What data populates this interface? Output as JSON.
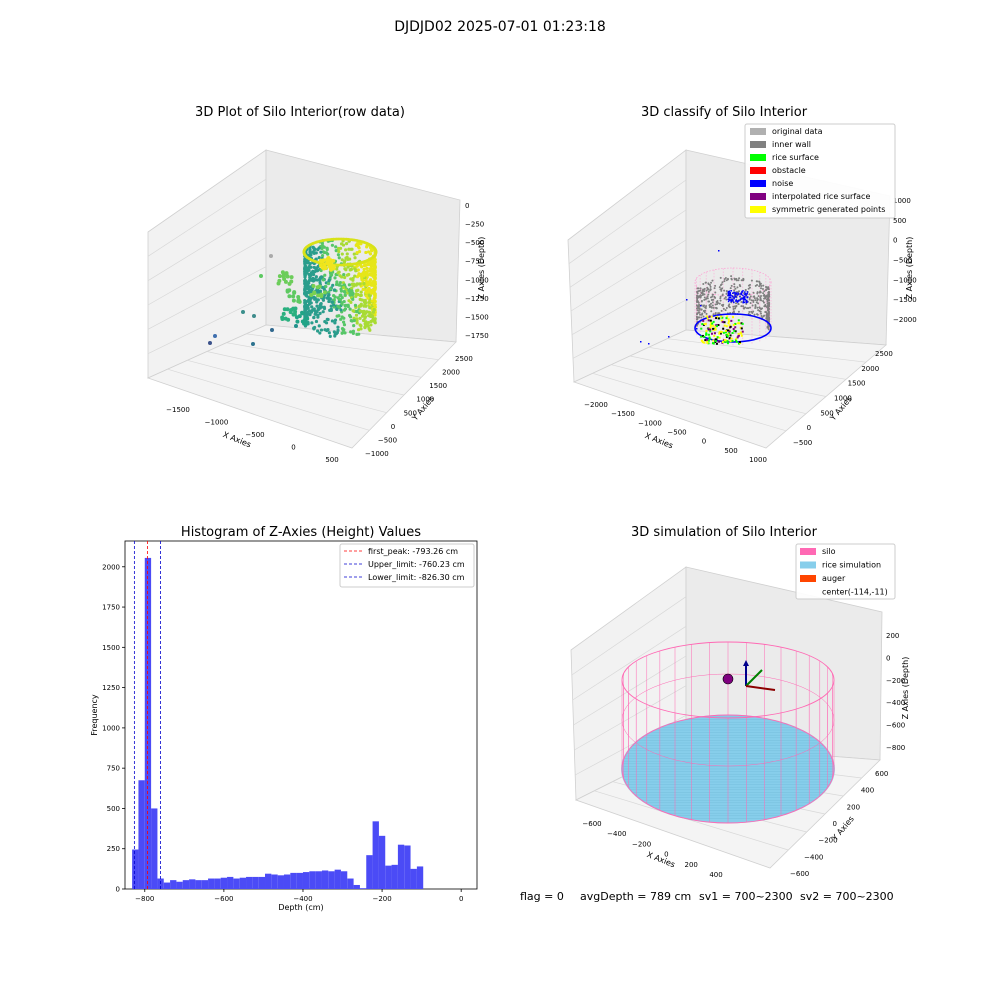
{
  "suptitle": "DJDJD02 2025-07-01 01:23:18",
  "footer": {
    "flag": "flag = 0",
    "avg_depth": "avgDepth = 789 cm",
    "sv1": "sv1 = 700~2300",
    "sv2": "sv2 = 700~2300"
  },
  "colors": {
    "histogram_bar": "#4b4bf6",
    "first_peak_line": "#ff0000",
    "limit_lines": "#0000cc",
    "silo_mesh": "#ff69b4",
    "rice_simulation": "#87ceeb",
    "auger": "#ff4500"
  },
  "chart_data": [
    {
      "type": "scatter3d",
      "title": "3D Plot of Silo Interior(row data)",
      "xlabel": "X Axies",
      "ylabel": "Y Axies",
      "zlabel": "Z Axies (Depth)",
      "x_ticks": [
        "−1500",
        "−1000",
        "−500",
        "0",
        "500"
      ],
      "y_ticks": [
        "−1000",
        "−500",
        "0",
        "500",
        "1000",
        "1500",
        "2000",
        "2500"
      ],
      "z_ticks": [
        "0",
        "−250",
        "−500",
        "−750",
        "−1000",
        "−1250",
        "−1500",
        "−1750"
      ],
      "colormap": "viridis"
    },
    {
      "type": "scatter3d",
      "title": "3D classify of Silo Interior",
      "xlabel": "X Axies",
      "ylabel": "Y Axies",
      "zlabel": "Z Axies (Depth)",
      "x_ticks": [
        "−2000",
        "−1500",
        "−1000",
        "−500",
        "0",
        "500",
        "1000"
      ],
      "y_ticks": [
        "−500",
        "0",
        "500",
        "1000",
        "1500",
        "2000",
        "2500"
      ],
      "z_ticks": [
        "1000",
        "500",
        "0",
        "−500",
        "−1000",
        "−1500",
        "−2000"
      ],
      "legend": [
        {
          "label": "original data",
          "color": "#b0b0b0"
        },
        {
          "label": "inner wall",
          "color": "#808080"
        },
        {
          "label": "rice surface",
          "color": "#00ff00"
        },
        {
          "label": "obstacle",
          "color": "#ff0000"
        },
        {
          "label": "noise",
          "color": "#0000ff"
        },
        {
          "label": "interpolated rice surface",
          "color": "#800080"
        },
        {
          "label": "symmetric generated points",
          "color": "#ffff00"
        }
      ]
    },
    {
      "type": "bar",
      "title": "Histogram of Z-Axies (Height) Values",
      "xlabel": "Depth (cm)",
      "ylabel": "Frequency",
      "xlim": [
        -850,
        40
      ],
      "ylim": [
        0,
        2160
      ],
      "x_ticks": [
        -800,
        -600,
        -400,
        -200,
        0
      ],
      "x_tick_labels": [
        "−800",
        "−600",
        "−400",
        "−200",
        "0"
      ],
      "y_ticks": [
        0,
        250,
        500,
        750,
        1000,
        1250,
        1500,
        1750,
        2000
      ],
      "bin_start": -832,
      "bin_width": 16,
      "values": [
        245,
        675,
        2055,
        500,
        65,
        40,
        55,
        45,
        55,
        60,
        55,
        55,
        65,
        65,
        70,
        75,
        65,
        70,
        75,
        75,
        75,
        95,
        90,
        85,
        90,
        100,
        100,
        105,
        110,
        110,
        115,
        110,
        120,
        110,
        65,
        25,
        5,
        210,
        420,
        330,
        145,
        150,
        275,
        270,
        125,
        140
      ],
      "vlines": [
        {
          "label": "first_peak: -793.26 cm",
          "x": -793.26,
          "color": "#ff0000"
        },
        {
          "label": "Upper_limit: -760.23 cm",
          "x": -760.23,
          "color": "#0000cc"
        },
        {
          "label": "Lower_limit: -826.30 cm",
          "x": -826.3,
          "color": "#0000cc"
        }
      ],
      "legend_position": "top-right"
    },
    {
      "type": "surface3d",
      "title": "3D simulation of Silo Interior",
      "xlabel": "X Axies",
      "ylabel": "Y Axies",
      "zlabel": "Z Axies (Depth)",
      "x_ticks": [
        "−600",
        "−400",
        "−200",
        "0",
        "200",
        "400"
      ],
      "y_ticks": [
        "600",
        "400",
        "200",
        "0",
        "−200",
        "−400",
        "−600"
      ],
      "z_ticks": [
        "200",
        "0",
        "−200",
        "−400",
        "−600",
        "−800"
      ],
      "legend": [
        {
          "label": "silo",
          "color": "#ff69b4"
        },
        {
          "label": "rice simulation",
          "color": "#87ceeb"
        },
        {
          "label": "auger",
          "color": "#ff4500"
        },
        {
          "label": "center(-114,-11)",
          "color": ""
        }
      ]
    }
  ]
}
